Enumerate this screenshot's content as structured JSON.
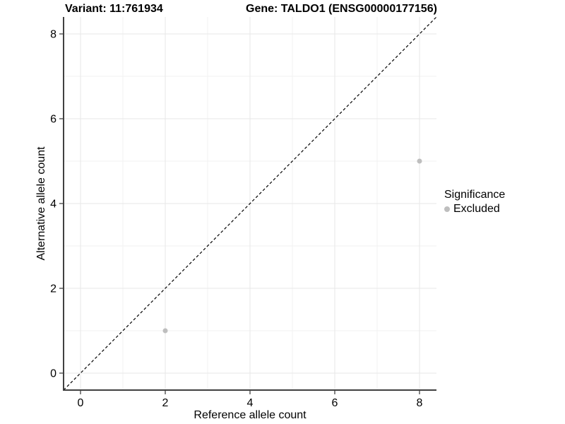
{
  "chart_data": {
    "type": "scatter",
    "titles": {
      "left": "Variant: 11:761934",
      "right": "Gene: TALDO1 (ENSG00000177156)"
    },
    "xlabel": "Reference allele count",
    "ylabel": "Alternative allele count",
    "xlim": [
      -0.4,
      8.4
    ],
    "ylim": [
      -0.4,
      8.4
    ],
    "xticks": [
      0,
      2,
      4,
      6,
      8
    ],
    "yticks": [
      0,
      2,
      4,
      6,
      8
    ],
    "xminor": [
      1,
      3,
      5,
      7
    ],
    "yminor": [
      1,
      3,
      5,
      7
    ],
    "grid": "major+minor",
    "series": [
      {
        "name": "Excluded",
        "color": "#bebebe",
        "points": [
          {
            "x": 2,
            "y": 1
          },
          {
            "x": 8,
            "y": 5
          }
        ]
      }
    ],
    "identity_line": {
      "slope": 1,
      "intercept": 0,
      "style": "dashed",
      "color": "#000000"
    },
    "legend": {
      "title": "Significance",
      "position": "right",
      "items": [
        {
          "label": "Excluded",
          "color": "#bebebe"
        }
      ]
    },
    "colors": {
      "background": "#ffffff",
      "grid_major": "#e7e7e7",
      "grid_minor": "#f2f2f2",
      "axis_line": "#404040",
      "tick": "#333333",
      "text": "#000000"
    }
  }
}
